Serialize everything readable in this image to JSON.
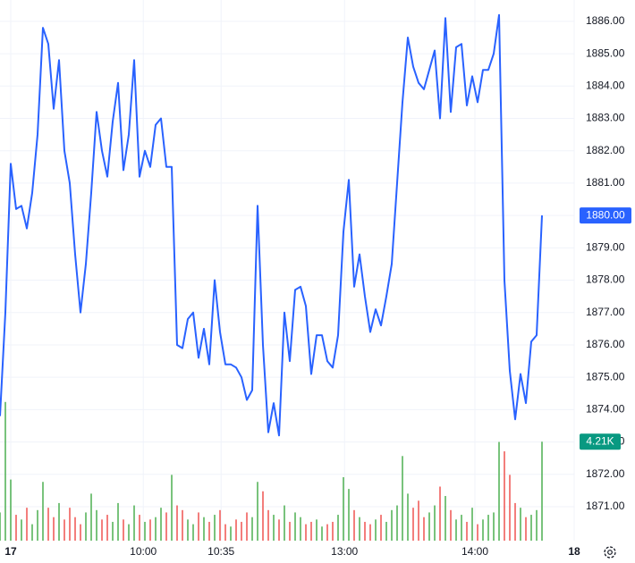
{
  "chart_data": {
    "type": "line",
    "xlim": [
      0,
      107
    ],
    "xticks": [
      {
        "value": 2,
        "label": "17"
      },
      {
        "value": 26.7,
        "label": "10:00"
      },
      {
        "value": 41.2,
        "label": "10:35"
      },
      {
        "value": 64.2,
        "label": "13:00"
      },
      {
        "value": 88.5,
        "label": "14:00"
      },
      {
        "value": 107,
        "label": "18"
      }
    ],
    "ylim": [
      1869.95,
      1886.66
    ],
    "yticks": [
      {
        "value": 1871,
        "label": "1871.00"
      },
      {
        "value": 1872,
        "label": "1872.00"
      },
      {
        "value": 1873,
        "label": "1873.00"
      },
      {
        "value": 1874,
        "label": "1874.00"
      },
      {
        "value": 1875,
        "label": "1875.00"
      },
      {
        "value": 1876,
        "label": "1876.00"
      },
      {
        "value": 1877,
        "label": "1877.00"
      },
      {
        "value": 1878,
        "label": "1878.00"
      },
      {
        "value": 1879,
        "label": "1879.00"
      },
      {
        "value": 1880,
        "label": "1880.00"
      },
      {
        "value": 1881,
        "label": "1881.00"
      },
      {
        "value": 1882,
        "label": "1882.00"
      },
      {
        "value": 1883,
        "label": "1883.00"
      },
      {
        "value": 1884,
        "label": "1884.00"
      },
      {
        "value": 1885,
        "label": "1885.00"
      },
      {
        "value": 1886,
        "label": "1886.00"
      }
    ],
    "y2lim": [
      0,
      23000
    ],
    "grid": true,
    "series": [
      {
        "color": "#2962ff",
        "values": [
          1873.8,
          1877,
          1881.6,
          1880.2,
          1880.3,
          1879.6,
          1880.7,
          1882.5,
          1885.8,
          1885.3,
          1883.3,
          1884.8,
          1882,
          1881,
          1878.8,
          1877,
          1878.5,
          1880.7,
          1883.2,
          1882,
          1881.2,
          1882.9,
          1884.1,
          1881.4,
          1882.5,
          1884.8,
          1881.2,
          1882,
          1881.5,
          1882.8,
          1883,
          1881.5,
          1881.5,
          1876,
          1875.9,
          1876.8,
          1877,
          1875.6,
          1876.5,
          1875.4,
          1878,
          1876.4,
          1875.4,
          1875.4,
          1875.3,
          1875,
          1874.3,
          1874.6,
          1880.3,
          1876,
          1873.3,
          1874.2,
          1873.2,
          1877,
          1875.5,
          1877.7,
          1877.8,
          1877.2,
          1875.1,
          1876.3,
          1876.3,
          1875.5,
          1875.3,
          1876.3,
          1879.5,
          1881.1,
          1877.8,
          1878.8,
          1877.5,
          1876.4,
          1877.1,
          1876.6,
          1877.5,
          1878.5,
          1881,
          1883.5,
          1885.5,
          1884.6,
          1884.1,
          1883.9,
          1884.5,
          1885.1,
          1883,
          1886.1,
          1883.2,
          1885.2,
          1885.3,
          1883.4,
          1884.3,
          1883.5,
          1884.5,
          1884.5,
          1885,
          1886.2,
          1878,
          1875.2,
          1873.7,
          1875.1,
          1874.2,
          1876.1,
          1876.3,
          1880
        ]
      },
      {
        "type": "bar",
        "axis": "y2",
        "up_color": "#4caf50",
        "down_color": "#ef5350",
        "values": [
          1200,
          5900,
          2600,
          1100,
          900,
          1400,
          700,
          1300,
          2500,
          1400,
          1000,
          1600,
          900,
          1400,
          1000,
          700,
          1200,
          2000,
          1300,
          900,
          1100,
          800,
          1600,
          900,
          700,
          1500,
          1100,
          800,
          900,
          1000,
          1400,
          1200,
          2800,
          1500,
          1300,
          900,
          700,
          1200,
          1000,
          800,
          1100,
          1300,
          700,
          600,
          900,
          800,
          1200,
          1000,
          2500,
          2100,
          1300,
          1100,
          900,
          1500,
          800,
          1200,
          1000,
          700,
          800,
          900,
          600,
          700,
          800,
          1100,
          2700,
          2200,
          1300,
          1000,
          800,
          700,
          900,
          1100,
          800,
          1300,
          1500,
          3600,
          2000,
          1400,
          1700,
          1000,
          1200,
          1500,
          2300,
          1900,
          1300,
          900,
          1100,
          800,
          1400,
          700,
          900,
          1100,
          1200,
          4200,
          3800,
          2800,
          1600,
          1400,
          1000,
          1100,
          1300,
          4210
        ]
      }
    ],
    "price_marker": {
      "value": 1880,
      "label": "1880.00",
      "color": "#2962ff"
    },
    "volume_marker": {
      "value": 4210,
      "label": "4.21K",
      "color": "#089981"
    }
  }
}
